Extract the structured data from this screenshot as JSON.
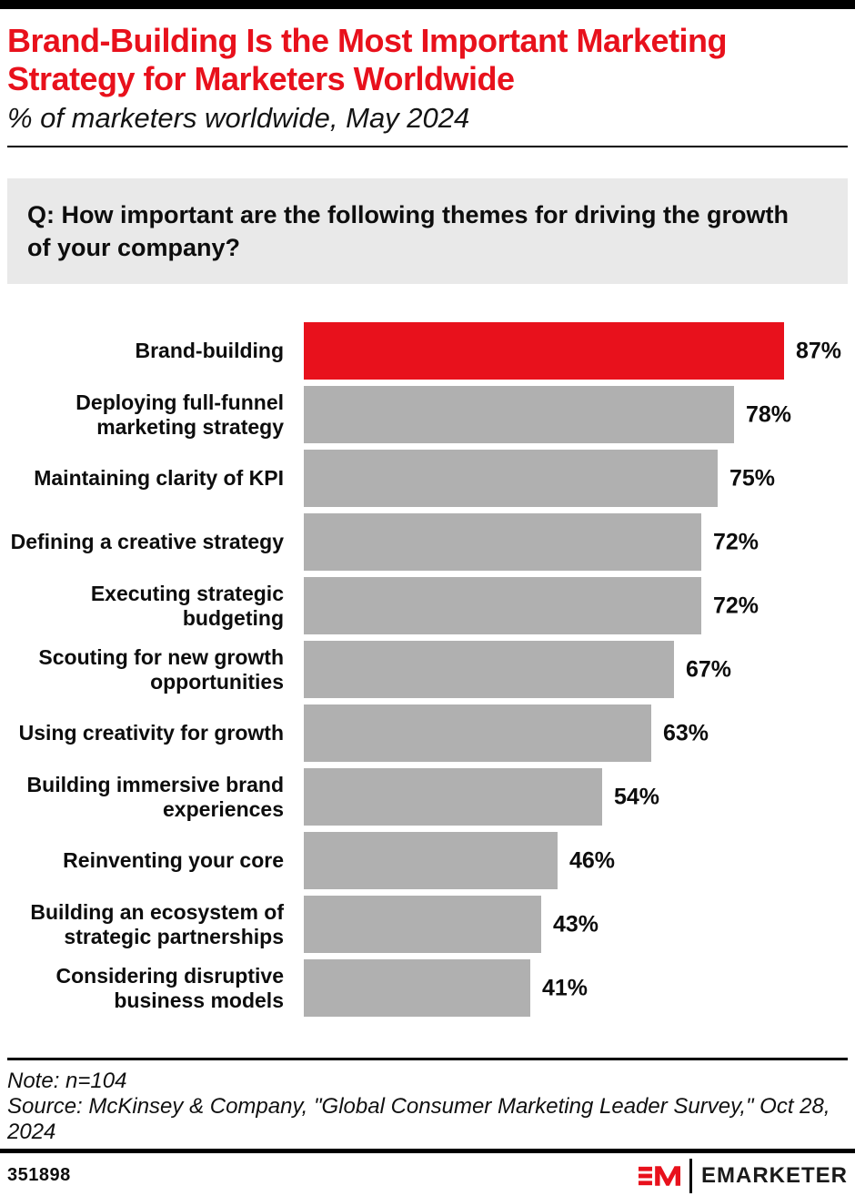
{
  "colors": {
    "accent_red": "#E8111C",
    "bar_gray": "#B0B0B0",
    "question_bg": "#E9E9E9",
    "rule_black": "#000000"
  },
  "header": {
    "title": "Brand-Building Is the Most Important Marketing Strategy for Marketers Worldwide",
    "subtitle": "% of marketers worldwide, May 2024"
  },
  "question": "Q: How important are the following themes for driving the growth of your company?",
  "chart_data": {
    "type": "bar",
    "orientation": "horizontal",
    "title": "Brand-Building Is the Most Important Marketing Strategy for Marketers Worldwide",
    "subtitle": "% of marketers worldwide, May 2024",
    "categories": [
      "Brand-building",
      "Deploying full-funnel marketing strategy",
      "Maintaining clarity of KPI",
      "Defining a creative strategy",
      "Executing strategic budgeting",
      "Scouting for new growth opportunities",
      "Using creativity for growth",
      "Building immersive brand experiences",
      "Reinventing your core",
      "Building an ecosystem of strategic partnerships",
      "Considering disruptive business models"
    ],
    "values": [
      87,
      78,
      75,
      72,
      72,
      67,
      63,
      54,
      46,
      43,
      41
    ],
    "value_suffix": "%",
    "value_labels_position": "outside-end",
    "highlight_index": 0,
    "highlight_color": "#E8111C",
    "bar_color": "#B0B0B0",
    "xlim": [
      0,
      100
    ],
    "grid": false,
    "legend": false,
    "xlabel": "",
    "ylabel": ""
  },
  "notes": {
    "note": "Note: n=104",
    "source": "Source: McKinsey & Company, \"Global Consumer Marketing Leader Survey,\" Oct 28, 2024"
  },
  "footer": {
    "chart_id": "351898",
    "brand_monogram": "EM",
    "brand_name": "EMARKETER"
  }
}
